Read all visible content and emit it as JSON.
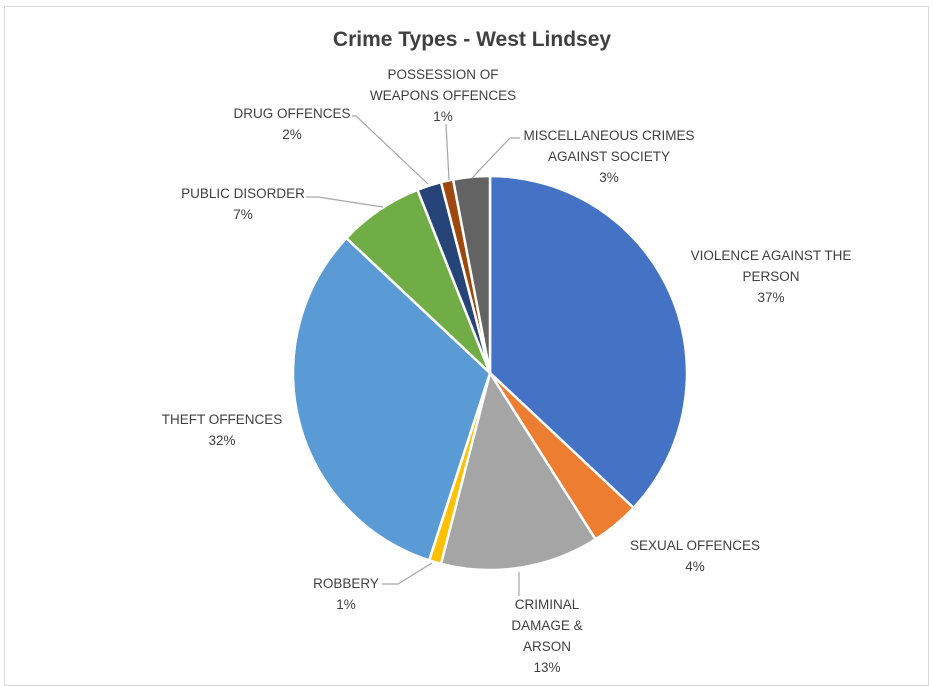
{
  "chart_data": {
    "type": "pie",
    "title": "Crime Types - West Lindsey",
    "start_angle_deg": 0,
    "direction": "clockwise",
    "slices": [
      {
        "category": "VIOLENCE AGAINST THE PERSON",
        "label_lines": [
          "VIOLENCE AGAINST THE",
          "PERSON"
        ],
        "value": 37,
        "percent_label": "37%",
        "color": "#4472C4"
      },
      {
        "category": "SEXUAL OFFENCES",
        "label_lines": [
          "SEXUAL OFFENCES"
        ],
        "value": 4,
        "percent_label": "4%",
        "color": "#ED7D31"
      },
      {
        "category": "CRIMINAL DAMAGE & ARSON",
        "label_lines": [
          "CRIMINAL",
          "DAMAGE &",
          "ARSON"
        ],
        "value": 13,
        "percent_label": "13%",
        "color": "#A5A5A5"
      },
      {
        "category": "ROBBERY",
        "label_lines": [
          "ROBBERY"
        ],
        "value": 1,
        "percent_label": "1%",
        "color": "#FFC000"
      },
      {
        "category": "THEFT OFFENCES",
        "label_lines": [
          "THEFT OFFENCES"
        ],
        "value": 32,
        "percent_label": "32%",
        "color": "#5B9BD5"
      },
      {
        "category": "PUBLIC DISORDER",
        "label_lines": [
          "PUBLIC DISORDER"
        ],
        "value": 7,
        "percent_label": "7%",
        "color": "#70AD47"
      },
      {
        "category": "DRUG OFFENCES",
        "label_lines": [
          "DRUG OFFENCES"
        ],
        "value": 2,
        "percent_label": "2%",
        "color": "#264478"
      },
      {
        "category": "POSSESSION OF WEAPONS OFFENCES",
        "label_lines": [
          "POSSESSION OF",
          "WEAPONS OFFENCES"
        ],
        "value": 1,
        "percent_label": "1%",
        "color": "#9E480E"
      },
      {
        "category": "MISCELLANEOUS CRIMES AGAINST SOCIETY",
        "label_lines": [
          "MISCELLANEOUS CRIMES",
          "AGAINST SOCIETY"
        ],
        "value": 3,
        "percent_label": "3%",
        "color": "#636363"
      }
    ],
    "legend": "none",
    "data_labels": "outside with leader lines"
  }
}
